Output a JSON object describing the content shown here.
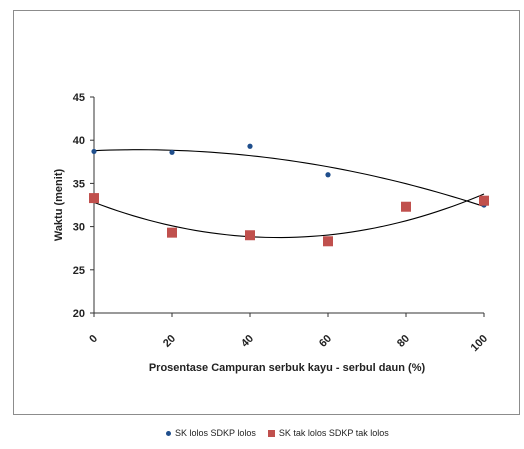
{
  "chart_data": {
    "type": "scatter",
    "xlabel": "Prosentase Campuran serbuk kayu - serbul daun (%)",
    "ylabel": "Waktu (menit)",
    "xlim": [
      0,
      100
    ],
    "ylim": [
      20,
      45
    ],
    "xticks": [
      "0",
      "20",
      "40",
      "60",
      "80",
      "100"
    ],
    "yticks": [
      "20",
      "25",
      "30",
      "35",
      "40",
      "45"
    ],
    "grid": false,
    "legend_position": "bottom",
    "series": [
      {
        "name": "SK lolos SDKP lolos",
        "marker": "circle",
        "color": "#1f4e8c",
        "x": [
          0,
          20,
          40,
          60,
          100
        ],
        "y": [
          38.7,
          38.6,
          39.3,
          36.0,
          32.5
        ],
        "trendline": "polynomial-2"
      },
      {
        "name": "SK tak lolos SDKP tak lolos",
        "marker": "square",
        "color": "#c0504d",
        "x": [
          0,
          20,
          40,
          60,
          80,
          100
        ],
        "y": [
          33.3,
          29.3,
          29.0,
          28.3,
          32.3,
          33.0
        ],
        "trendline": "polynomial-2"
      }
    ]
  }
}
